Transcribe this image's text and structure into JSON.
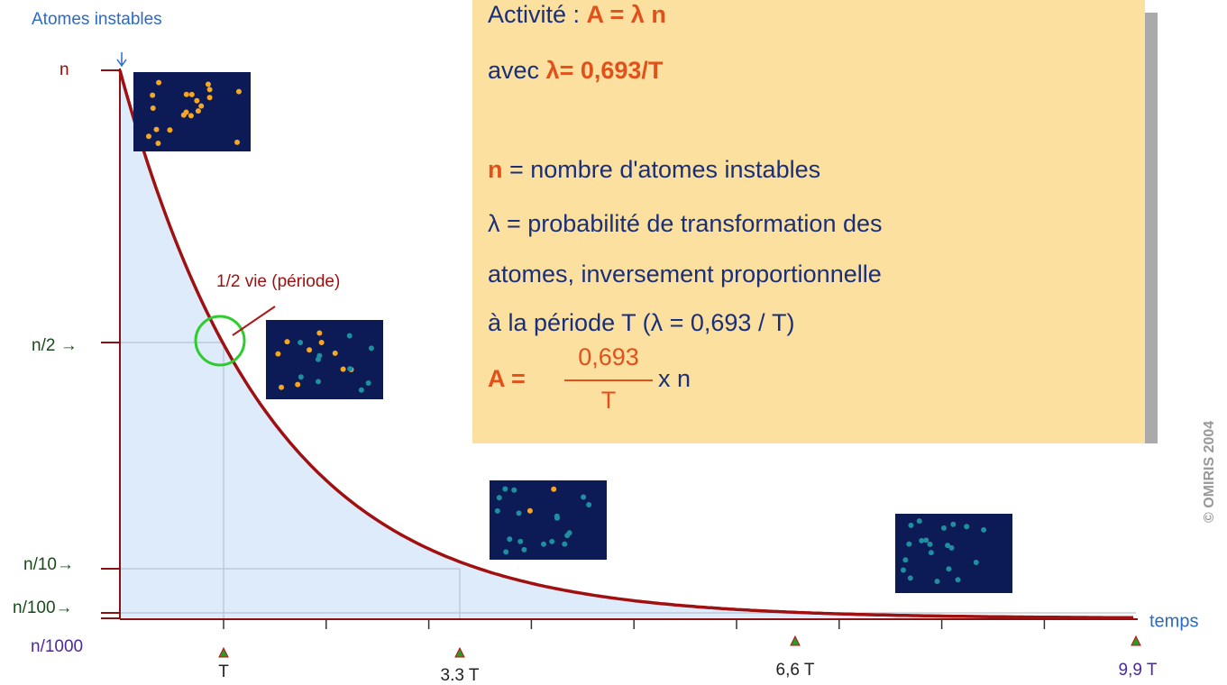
{
  "header": {
    "title": "Atomes instables"
  },
  "y_labels": [
    "n",
    "n/2 →",
    "n/10→",
    "n/100→",
    "n/1000"
  ],
  "annotation": "1/2 vie (période)",
  "x_labels": [
    "T",
    "3.3 T",
    "6,6 T",
    "9,9 T"
  ],
  "x_axis_title": "temps",
  "box": {
    "line1": {
      "text": "Activité : ",
      "formula": "A = λ n"
    },
    "line2": {
      "text": "avec ",
      "formula": "λ= 0,693/T"
    },
    "line3": {
      "symbol": "n",
      "text": " = nombre d'atomes instables"
    },
    "line4": "λ = probabilité de transformation des",
    "line5": "atomes, inversement proportionnelle",
    "line6": "à la période T (λ = 0,693 / T)",
    "line7": {
      "lhs": "A = ",
      "numerator": "0,693",
      "denominator": "T",
      "rhs": " x n"
    }
  },
  "copyright": "© OMIRIS 2004"
}
